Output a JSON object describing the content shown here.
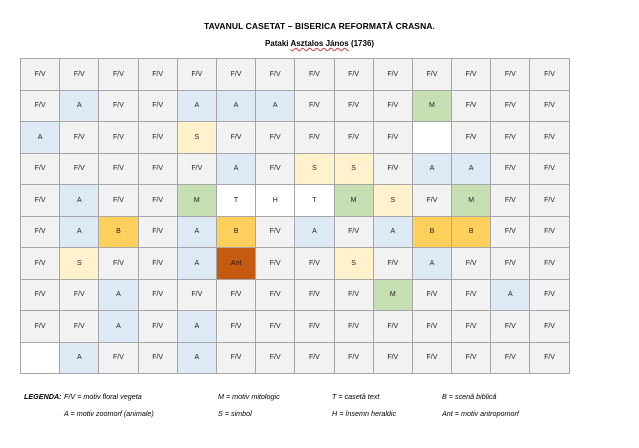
{
  "title": "TAVANUL CASETAT – BISERICA REFORMATĂ CRASNA.",
  "subtitle_prefix": "Pataki",
  "subtitle_name": "Asztalos János",
  "subtitle_year": "(1736)",
  "colors": {
    "A": "#dde9f5",
    "S": "#fff2cc",
    "M": "#c6e0b4",
    "B": "#ffd05c",
    "Ant": "#c55a11",
    "T": "#ffffff",
    "H": "#ffffff",
    "F/V": "#f2f2f2",
    "empty": "#ffffff"
  },
  "grid": [
    [
      "F/V",
      "F/V",
      "F/V",
      "F/V",
      "F/V",
      "F/V",
      "F/V",
      "F/V",
      "F/V",
      "F/V",
      "F/V",
      "F/V",
      "F/V",
      "F/V"
    ],
    [
      "F/V",
      "A",
      "F/V",
      "F/V",
      "A",
      "A",
      "A",
      "F/V",
      "F/V",
      "F/V",
      "M",
      "F/V",
      "F/V",
      "F/V"
    ],
    [
      "A",
      "F/V",
      "F/V",
      "F/V",
      "S",
      "F/V",
      "F/V",
      "F/V",
      "F/V",
      "F/V",
      "",
      "F/V",
      "F/V",
      "F/V"
    ],
    [
      "F/V",
      "F/V",
      "F/V",
      "F/V",
      "F/V",
      "A",
      "F/V",
      "S",
      "S",
      "F/V",
      "A",
      "A",
      "F/V",
      "F/V"
    ],
    [
      "F/V",
      "A",
      "F/V",
      "F/V",
      "M",
      "T",
      "H",
      "T",
      "M",
      "S",
      "F/V",
      "M",
      "F/V",
      "F/V"
    ],
    [
      "F/V",
      "A",
      "B",
      "F/V",
      "A",
      "B",
      "F/V",
      "A",
      "F/V",
      "A",
      "B",
      "B",
      "F/V",
      "F/V"
    ],
    [
      "F/V",
      "S",
      "F/V",
      "F/V",
      "A",
      "Ant",
      "F/V",
      "F/V",
      "S",
      "F/V",
      "A",
      "F/V",
      "F/V",
      "F/V"
    ],
    [
      "F/V",
      "F/V",
      "A",
      "F/V",
      "F/V",
      "F/V",
      "F/V",
      "F/V",
      "F/V",
      "M",
      "F/V",
      "F/V",
      "A",
      "F/V"
    ],
    [
      "F/V",
      "F/V",
      "A",
      "F/V",
      "A",
      "F/V",
      "F/V",
      "F/V",
      "F/V",
      "F/V",
      "F/V",
      "F/V",
      "F/V",
      "F/V"
    ],
    [
      "",
      "A",
      "F/V",
      "F/V",
      "A",
      "F/V",
      "F/V",
      "F/V",
      "F/V",
      "F/V",
      "F/V",
      "F/V",
      "F/V",
      "F/V"
    ]
  ],
  "legend": {
    "label": "LEGENDA:",
    "rows": [
      [
        "F/V = motiv floral vegeta",
        "M = motiv mitologic",
        "T = casetă text",
        "B = scenă biblică"
      ],
      [
        "A = motiv zoomorf (animale)",
        "S = simbol",
        "H =  însemn heraldic",
        "Ant = motiv antropomorf"
      ]
    ]
  }
}
